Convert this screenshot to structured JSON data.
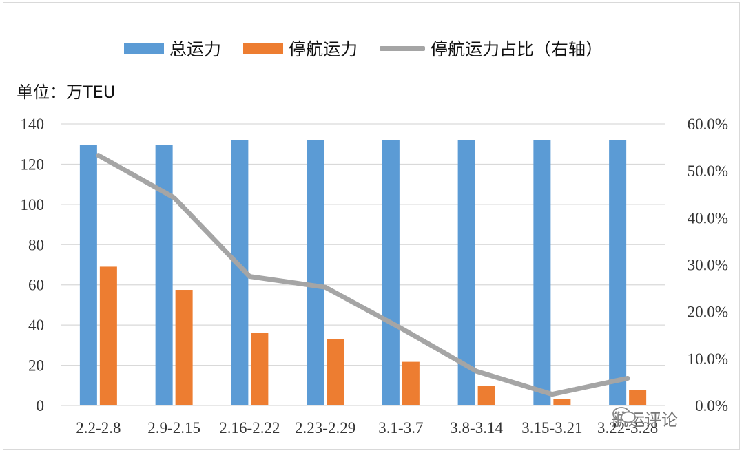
{
  "unit_label": "单位：万TEU",
  "watermark": "航运评论",
  "colors": {
    "total": "#5b9bd5",
    "idle": "#ed7d31",
    "share": "#a5a5a5",
    "grid": "#d9d9d9"
  },
  "legend": [
    {
      "label": "总运力",
      "kind": "bar",
      "color": "#5b9bd5"
    },
    {
      "label": "停航运力",
      "kind": "bar",
      "color": "#ed7d31"
    },
    {
      "label": "停航运力占比（右轴）",
      "kind": "line",
      "color": "#a5a5a5"
    }
  ],
  "chart_data": {
    "type": "bar",
    "categories": [
      "2.2-2.8",
      "2.9-2.15",
      "2.16-2.22",
      "2.23-2.29",
      "3.1-3.7",
      "3.8-3.14",
      "3.15-3.21",
      "3.22-3.28"
    ],
    "series": [
      {
        "name": "总运力",
        "type": "bar",
        "axis": "left",
        "values": [
          129.5,
          129.5,
          131.8,
          131.8,
          131.8,
          131.8,
          131.8,
          131.8
        ]
      },
      {
        "name": "停航运力",
        "type": "bar",
        "axis": "left",
        "values": [
          69,
          57.5,
          36.2,
          33.2,
          21.7,
          9.6,
          3.4,
          7.7
        ]
      },
      {
        "name": "停航运力占比（右轴）",
        "type": "line",
        "axis": "right",
        "values": [
          53.3,
          44.3,
          27.5,
          25.2,
          16.5,
          7.3,
          2.4,
          5.8
        ]
      }
    ],
    "ylim_left": [
      0,
      140
    ],
    "yticks_left": [
      "0",
      "20",
      "40",
      "60",
      "80",
      "100",
      "120",
      "140"
    ],
    "ylim_right": [
      0,
      60
    ],
    "yticks_right": [
      "0.0%",
      "10.0%",
      "20.0%",
      "30.0%",
      "40.0%",
      "50.0%",
      "60.0%"
    ],
    "grid": true,
    "legend_position": "top"
  }
}
